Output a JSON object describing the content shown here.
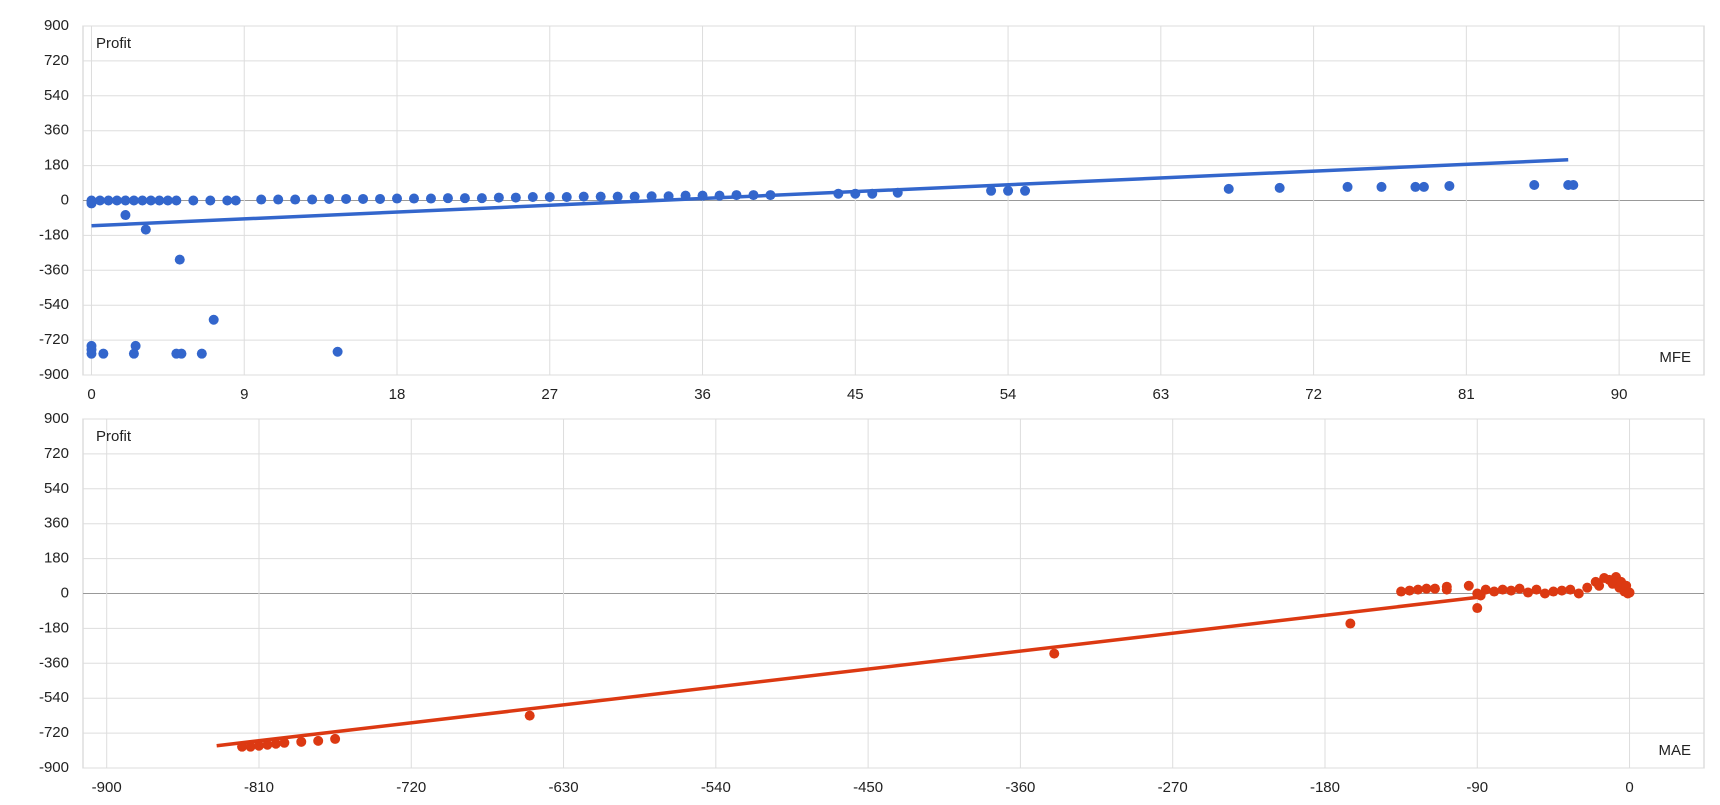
{
  "chart_data": [
    {
      "type": "scatter",
      "x_label": "MFE",
      "y_label": "Profit",
      "color": "#3366cc",
      "grid": true,
      "xlim": [
        -0.5,
        95
      ],
      "ylim": [
        -900,
        900
      ],
      "xticks": [
        0,
        9,
        18,
        27,
        36,
        45,
        54,
        63,
        72,
        81,
        90
      ],
      "yticks": [
        -900,
        -720,
        -540,
        -360,
        -180,
        0,
        180,
        360,
        540,
        720,
        900
      ],
      "x": [
        0,
        0,
        0,
        0.5,
        1,
        1.5,
        2,
        2,
        2.5,
        3,
        3.2,
        3.5,
        4,
        4.5,
        5,
        5.2,
        6,
        7,
        7.2,
        8,
        8.5,
        10,
        11,
        12,
        13,
        14,
        15,
        16,
        17,
        18,
        19,
        20,
        21,
        22,
        23,
        24,
        25,
        26,
        27,
        28,
        29,
        30,
        31,
        32,
        33,
        34,
        35,
        36,
        37,
        38,
        39,
        40,
        44,
        45,
        46,
        47.5,
        53,
        54,
        55,
        67,
        70,
        74,
        76,
        78,
        78.5,
        80,
        85,
        87,
        87.3,
        0,
        0,
        0,
        0.7,
        2.5,
        2.6,
        5,
        5.3,
        6.5,
        14.5
      ],
      "y": [
        -5,
        -15,
        0,
        0,
        0,
        0,
        0,
        -75,
        0,
        0,
        -150,
        0,
        0,
        0,
        0,
        -305,
        0,
        0,
        -615,
        0,
        0,
        5,
        5,
        5,
        5,
        8,
        8,
        8,
        8,
        10,
        10,
        10,
        12,
        12,
        12,
        15,
        15,
        18,
        18,
        18,
        20,
        20,
        20,
        20,
        22,
        22,
        25,
        25,
        25,
        28,
        28,
        28,
        35,
        35,
        35,
        40,
        50,
        50,
        50,
        60,
        65,
        70,
        70,
        70,
        70,
        75,
        80,
        80,
        80,
        -750,
        -790,
        -770,
        -790,
        -790,
        -750,
        -790,
        -790,
        -790,
        -780
      ],
      "trendline": {
        "x": [
          0,
          87
        ],
        "y": [
          -130,
          210
        ]
      }
    },
    {
      "type": "scatter",
      "x_label": "MAE",
      "y_label": "Profit",
      "color": "#dc3912",
      "grid": true,
      "xlim": [
        -914,
        44
      ],
      "ylim": [
        -900,
        900
      ],
      "xticks": [
        -900,
        -810,
        -720,
        -630,
        -540,
        -450,
        -360,
        -270,
        -180,
        -90,
        0
      ],
      "yticks": [
        -900,
        -720,
        -540,
        -360,
        -180,
        0,
        180,
        360,
        540,
        720,
        900
      ],
      "x": [
        -820,
        -815,
        -810,
        -805,
        -800,
        -795,
        -785,
        -775,
        -765,
        -650,
        -340,
        -165,
        -90,
        -135,
        -130,
        -125,
        -120,
        -115,
        -108,
        -108,
        -95,
        -85,
        -80,
        -75,
        -70,
        -65,
        -60,
        -55,
        -50,
        -45,
        -40,
        -35,
        -30,
        -25,
        -20,
        -18,
        -15,
        -12,
        -10,
        -8,
        -6,
        -5,
        -3,
        -2,
        0,
        -1,
        -90,
        -88
      ],
      "y": [
        -790,
        -790,
        -785,
        -780,
        -775,
        -770,
        -765,
        -760,
        -750,
        -630,
        -310,
        -155,
        -75,
        10,
        15,
        20,
        25,
        25,
        35,
        20,
        40,
        20,
        10,
        20,
        15,
        25,
        5,
        20,
        0,
        10,
        15,
        20,
        0,
        30,
        60,
        40,
        80,
        70,
        50,
        85,
        30,
        60,
        10,
        40,
        5,
        0,
        0,
        -10
      ],
      "trendline": {
        "x": [
          -835,
          -90
        ],
        "y": [
          -785,
          -20
        ]
      }
    }
  ]
}
